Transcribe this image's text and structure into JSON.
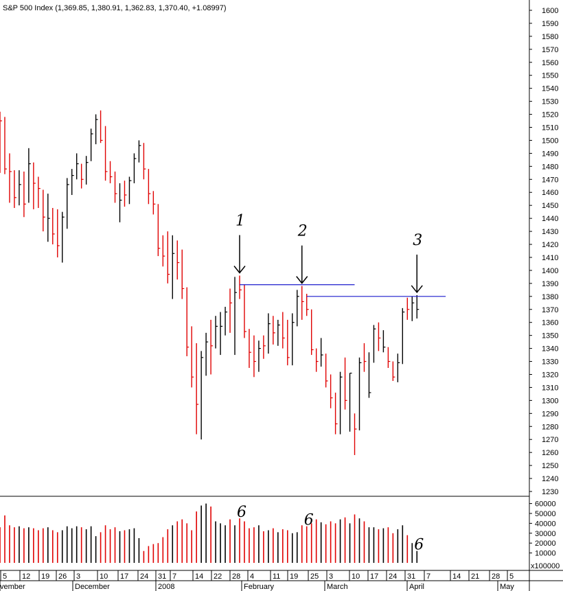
{
  "header": {
    "title": "S&P 500 Index (1,369.85, 1,380.91, 1,362.83, 1,370.40, +1.08997)"
  },
  "chart_data": {
    "type": "ohlc-bar",
    "title": "S&P 500 Index (1,369.85, 1,380.91, 1,362.83, 1,370.40, +1.08997)",
    "price_axis": {
      "min": 1230,
      "max": 1600,
      "step": 10,
      "side": "right"
    },
    "volume_axis": {
      "min": 0,
      "max": 60000,
      "step": 10000,
      "unit_label": "x100000"
    },
    "date_axis": {
      "day_ticks": [
        "5",
        "12",
        "19",
        "26",
        "3",
        "10",
        "17",
        "24",
        "31",
        "7",
        "14",
        "22",
        "28",
        "4",
        "11",
        "19",
        "25",
        "3",
        "10",
        "17",
        "24",
        "31",
        "7",
        "14",
        "21",
        "28",
        "5"
      ],
      "month_labels": [
        "vember",
        "December",
        "2008",
        "February",
        "March",
        "April",
        "May"
      ]
    },
    "colors": {
      "up": "#000000",
      "down": "#e00000",
      "resistance": "#1a1acc",
      "background": "#ffffff"
    },
    "bars": [
      {
        "h": 1522,
        "l": 1475,
        "c": 1515,
        "d": "dn"
      },
      {
        "h": 1518,
        "l": 1474,
        "c": 1478,
        "d": "dn"
      },
      {
        "h": 1490,
        "l": 1452,
        "c": 1476,
        "d": "dn"
      },
      {
        "h": 1477,
        "l": 1448,
        "c": 1456,
        "d": "dn"
      },
      {
        "h": 1477,
        "l": 1450,
        "c": 1466,
        "d": "up"
      },
      {
        "h": 1476,
        "l": 1441,
        "c": 1451,
        "d": "dn"
      },
      {
        "h": 1494,
        "l": 1452,
        "c": 1482,
        "d": "up"
      },
      {
        "h": 1483,
        "l": 1447,
        "c": 1467,
        "d": "dn"
      },
      {
        "h": 1472,
        "l": 1448,
        "c": 1463,
        "d": "dn"
      },
      {
        "h": 1462,
        "l": 1430,
        "c": 1441,
        "d": "dn"
      },
      {
        "h": 1459,
        "l": 1422,
        "c": 1440,
        "d": "up"
      },
      {
        "h": 1448,
        "l": 1420,
        "c": 1428,
        "d": "dn"
      },
      {
        "h": 1447,
        "l": 1410,
        "c": 1419,
        "d": "dn"
      },
      {
        "h": 1445,
        "l": 1406,
        "c": 1441,
        "d": "up"
      },
      {
        "h": 1471,
        "l": 1432,
        "c": 1466,
        "d": "up"
      },
      {
        "h": 1478,
        "l": 1458,
        "c": 1473,
        "d": "up"
      },
      {
        "h": 1490,
        "l": 1470,
        "c": 1482,
        "d": "up"
      },
      {
        "h": 1482,
        "l": 1463,
        "c": 1470,
        "d": "dn"
      },
      {
        "h": 1488,
        "l": 1466,
        "c": 1483,
        "d": "up"
      },
      {
        "h": 1509,
        "l": 1484,
        "c": 1505,
        "d": "up"
      },
      {
        "h": 1520,
        "l": 1497,
        "c": 1516,
        "d": "up"
      },
      {
        "h": 1523,
        "l": 1498,
        "c": 1500,
        "d": "dn"
      },
      {
        "h": 1511,
        "l": 1469,
        "c": 1476,
        "d": "dn"
      },
      {
        "h": 1484,
        "l": 1467,
        "c": 1472,
        "d": "dn"
      },
      {
        "h": 1476,
        "l": 1452,
        "c": 1459,
        "d": "dn"
      },
      {
        "h": 1467,
        "l": 1437,
        "c": 1454,
        "d": "up"
      },
      {
        "h": 1469,
        "l": 1449,
        "c": 1458,
        "d": "dn"
      },
      {
        "h": 1472,
        "l": 1451,
        "c": 1469,
        "d": "up"
      },
      {
        "h": 1490,
        "l": 1467,
        "c": 1486,
        "d": "up"
      },
      {
        "h": 1500,
        "l": 1483,
        "c": 1496,
        "d": "up"
      },
      {
        "h": 1498,
        "l": 1470,
        "c": 1478,
        "d": "dn"
      },
      {
        "h": 1478,
        "l": 1451,
        "c": 1459,
        "d": "dn"
      },
      {
        "h": 1461,
        "l": 1443,
        "c": 1451,
        "d": "dn"
      },
      {
        "h": 1451,
        "l": 1411,
        "c": 1417,
        "d": "dn"
      },
      {
        "h": 1427,
        "l": 1403,
        "c": 1411,
        "d": "dn"
      },
      {
        "h": 1430,
        "l": 1390,
        "c": 1397,
        "d": "dn"
      },
      {
        "h": 1427,
        "l": 1378,
        "c": 1413,
        "d": "up"
      },
      {
        "h": 1423,
        "l": 1393,
        "c": 1406,
        "d": "dn"
      },
      {
        "h": 1416,
        "l": 1378,
        "c": 1386,
        "d": "dn"
      },
      {
        "h": 1387,
        "l": 1334,
        "c": 1341,
        "d": "dn"
      },
      {
        "h": 1357,
        "l": 1310,
        "c": 1318,
        "d": "dn"
      },
      {
        "h": 1344,
        "l": 1274,
        "c": 1297,
        "d": "dn"
      },
      {
        "h": 1338,
        "l": 1270,
        "c": 1333,
        "d": "up"
      },
      {
        "h": 1352,
        "l": 1319,
        "c": 1345,
        "d": "up"
      },
      {
        "h": 1362,
        "l": 1320,
        "c": 1342,
        "d": "dn"
      },
      {
        "h": 1365,
        "l": 1340,
        "c": 1357,
        "d": "up"
      },
      {
        "h": 1368,
        "l": 1335,
        "c": 1357,
        "d": "up"
      },
      {
        "h": 1372,
        "l": 1350,
        "c": 1368,
        "d": "up"
      },
      {
        "h": 1386,
        "l": 1352,
        "c": 1375,
        "d": "dn"
      },
      {
        "h": 1395,
        "l": 1335,
        "c": 1383,
        "d": "up"
      },
      {
        "h": 1396,
        "l": 1378,
        "c": 1385,
        "d": "dn"
      },
      {
        "h": 1389,
        "l": 1348,
        "c": 1353,
        "d": "dn"
      },
      {
        "h": 1355,
        "l": 1325,
        "c": 1337,
        "d": "dn"
      },
      {
        "h": 1350,
        "l": 1318,
        "c": 1330,
        "d": "dn"
      },
      {
        "h": 1346,
        "l": 1322,
        "c": 1340,
        "d": "up"
      },
      {
        "h": 1350,
        "l": 1332,
        "c": 1342,
        "d": "dn"
      },
      {
        "h": 1367,
        "l": 1336,
        "c": 1359,
        "d": "up"
      },
      {
        "h": 1365,
        "l": 1343,
        "c": 1352,
        "d": "dn"
      },
      {
        "h": 1362,
        "l": 1342,
        "c": 1358,
        "d": "up"
      },
      {
        "h": 1368,
        "l": 1340,
        "c": 1348,
        "d": "dn"
      },
      {
        "h": 1362,
        "l": 1327,
        "c": 1333,
        "d": "dn"
      },
      {
        "h": 1367,
        "l": 1327,
        "c": 1360,
        "d": "up"
      },
      {
        "h": 1385,
        "l": 1357,
        "c": 1380,
        "d": "up"
      },
      {
        "h": 1388,
        "l": 1362,
        "c": 1376,
        "d": "dn"
      },
      {
        "h": 1382,
        "l": 1365,
        "c": 1370,
        "d": "dn"
      },
      {
        "h": 1370,
        "l": 1335,
        "c": 1339,
        "d": "dn"
      },
      {
        "h": 1340,
        "l": 1322,
        "c": 1330,
        "d": "dn"
      },
      {
        "h": 1348,
        "l": 1326,
        "c": 1335,
        "d": "up"
      },
      {
        "h": 1336,
        "l": 1310,
        "c": 1315,
        "d": "dn"
      },
      {
        "h": 1320,
        "l": 1294,
        "c": 1302,
        "d": "dn"
      },
      {
        "h": 1306,
        "l": 1274,
        "c": 1282,
        "d": "dn"
      },
      {
        "h": 1322,
        "l": 1274,
        "c": 1318,
        "d": "up"
      },
      {
        "h": 1333,
        "l": 1293,
        "c": 1300,
        "d": "dn"
      },
      {
        "h": 1321,
        "l": 1276,
        "c": 1321,
        "d": "up"
      },
      {
        "h": 1290,
        "l": 1258,
        "c": 1278,
        "d": "dn"
      },
      {
        "h": 1333,
        "l": 1277,
        "c": 1329,
        "d": "up"
      },
      {
        "h": 1344,
        "l": 1322,
        "c": 1330,
        "d": "dn"
      },
      {
        "h": 1337,
        "l": 1302,
        "c": 1306,
        "d": "up"
      },
      {
        "h": 1358,
        "l": 1329,
        "c": 1355,
        "d": "up"
      },
      {
        "h": 1360,
        "l": 1338,
        "c": 1348,
        "d": "dn"
      },
      {
        "h": 1354,
        "l": 1337,
        "c": 1341,
        "d": "up"
      },
      {
        "h": 1341,
        "l": 1325,
        "c": 1330,
        "d": "dn"
      },
      {
        "h": 1330,
        "l": 1315,
        "c": 1318,
        "d": "dn"
      },
      {
        "h": 1336,
        "l": 1314,
        "c": 1329,
        "d": "up"
      },
      {
        "h": 1371,
        "l": 1328,
        "c": 1368,
        "d": "up"
      },
      {
        "h": 1379,
        "l": 1362,
        "c": 1370,
        "d": "dn"
      },
      {
        "h": 1380,
        "l": 1361,
        "c": 1375,
        "d": "up"
      },
      {
        "h": 1381,
        "l": 1363,
        "c": 1370,
        "d": "up"
      }
    ],
    "volumes": [
      36000,
      48000,
      38000,
      36000,
      37000,
      35000,
      36000,
      35000,
      33000,
      35000,
      36000,
      33000,
      31000,
      33000,
      37000,
      35000,
      37000,
      36000,
      34000,
      37000,
      27000,
      31000,
      38000,
      34000,
      36000,
      32000,
      33000,
      34000,
      35000,
      25000,
      12000,
      17000,
      19000,
      20000,
      26000,
      34000,
      38000,
      42000,
      44000,
      40000,
      33000,
      52000,
      58000,
      60000,
      57000,
      42000,
      40000,
      38000,
      44000,
      38000,
      45000,
      42000,
      35000,
      36000,
      38000,
      32000,
      33000,
      35000,
      31000,
      34000,
      33000,
      30000,
      31000,
      38000,
      37000,
      40000,
      44000,
      41000,
      39000,
      42000,
      40000,
      44000,
      46000,
      40000,
      49000,
      45000,
      42000,
      36000,
      36000,
      34000,
      35000,
      36000,
      30000,
      34000,
      38000,
      28000,
      20000,
      12000
    ],
    "annotations": [
      {
        "label": "1",
        "bar": 50
      },
      {
        "label": "2",
        "bar": 63
      },
      {
        "label": "3",
        "bar": 87
      }
    ],
    "resistance_lines": [
      {
        "price": 1389,
        "from_bar": 50,
        "to_bar": 74
      },
      {
        "price": 1380,
        "from_bar": 64,
        "to_bar": 93
      }
    ],
    "volume_annotations": [
      {
        "label": "6",
        "bar": 50
      },
      {
        "label": "6",
        "bar": 64
      },
      {
        "label": "6",
        "bar": 87
      }
    ]
  }
}
